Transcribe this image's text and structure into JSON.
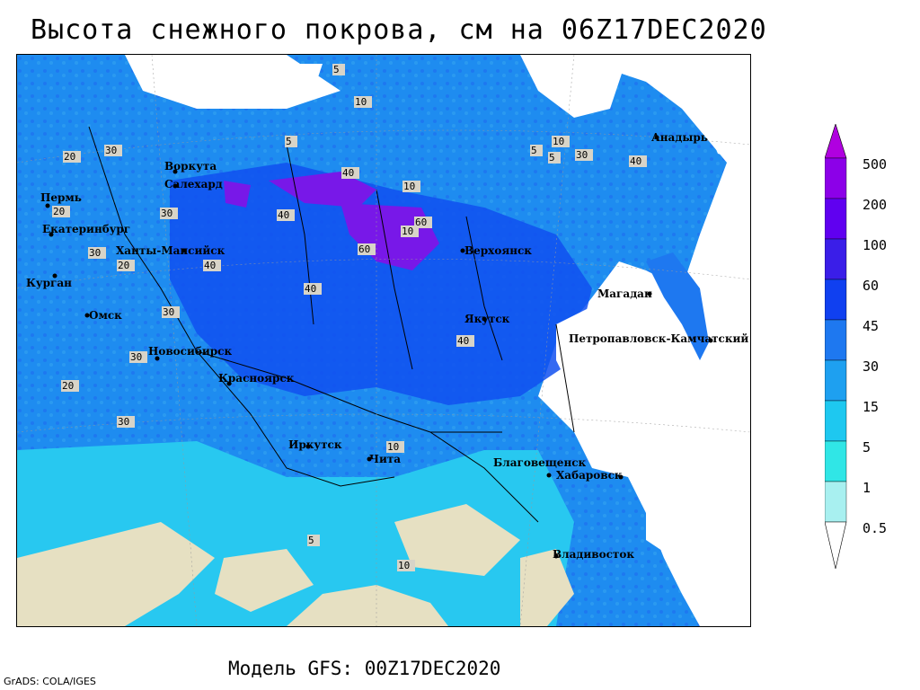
{
  "title": "Высота снежного покрова, см на 06Z17DEC2020",
  "model_run": "Модель GFS: 00Z17DEC2020",
  "credit": "GrADS: COLA/IGES",
  "legend": {
    "levels": [
      "500",
      "200",
      "100",
      "60",
      "45",
      "30",
      "15",
      "5",
      "1",
      "0.5"
    ],
    "colors": [
      "#b000e0",
      "#8c00e8",
      "#6000f0",
      "#3a1ee8",
      "#1040f0",
      "#1e78f0",
      "#1ea0f0",
      "#1ec8f0",
      "#30e6e6",
      "#a8f0f0",
      "#ffffff"
    ]
  },
  "colors": {
    "land_nosnow": "#e6e0c2",
    "sea": "#ffffff",
    "snow_shallow": "#28c8f0",
    "snow_mid": "#1e8cf0",
    "snow_deep": "#1050f0",
    "snow_very_deep": "#7818e8"
  },
  "cities": [
    "Воркута",
    "Салехард",
    "Пермь",
    "Екатеринбург",
    "Ханты-Мансийск",
    "Курган",
    "Омск",
    "Новосибирск",
    "Красноярск",
    "Иркутск",
    "Чита",
    "Верхоянск",
    "Якутск",
    "Магадан",
    "Анадырь",
    "Петропавловск-Камчатский",
    "Благовещенск",
    "Хабаровск",
    "Владивосток"
  ],
  "contour_labels": [
    "5",
    "10",
    "20",
    "30",
    "40",
    "60",
    "5",
    "10",
    "30",
    "40",
    "20",
    "30",
    "40",
    "10",
    "5",
    "30",
    "20",
    "40",
    "10",
    "5",
    "30",
    "40",
    "60",
    "40",
    "30",
    "20",
    "10",
    "5",
    "10",
    "30"
  ]
}
